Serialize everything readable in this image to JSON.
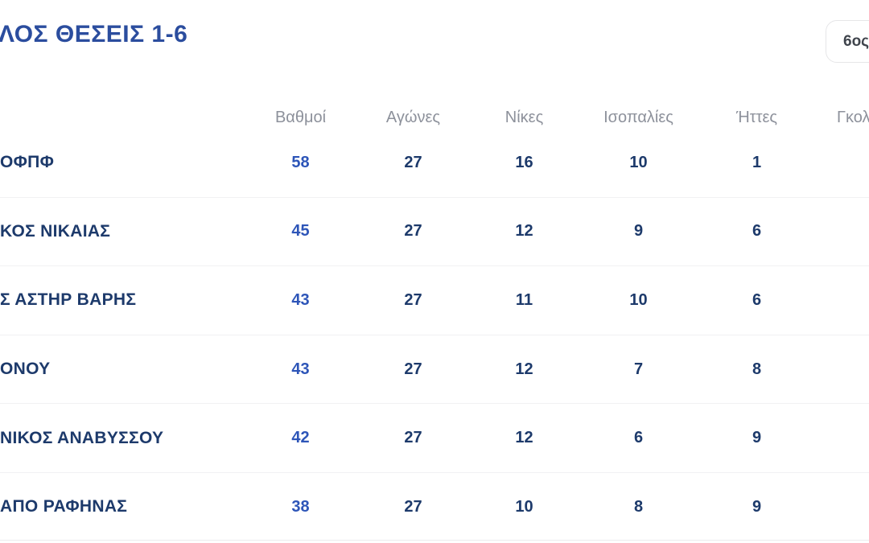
{
  "page": {
    "title": "ΛΟΣ ΘΕΣΕΙΣ 1-6",
    "group_selector_label": "6ος"
  },
  "colors": {
    "title_blue": "#2b4d9e",
    "team_navy": "#1d3a6b",
    "points_blue": "#2d55b8",
    "header_gray": "#8d919b",
    "divider": "#f1f1f3",
    "button_border": "#e6e6e8"
  },
  "table": {
    "columns": [
      "Βαθμοί",
      "Αγώνες",
      "Νίκες",
      "Ισοπαλίες",
      "Ήττες",
      "Γκολ"
    ],
    "rows": [
      {
        "team": "ΟΦΠΦ",
        "points": "58",
        "games": "27",
        "wins": "16",
        "draws": "10",
        "losses": "1"
      },
      {
        "team": "ΚΟΣ ΝΙΚΑΙΑΣ",
        "points": "45",
        "games": "27",
        "wins": "12",
        "draws": "9",
        "losses": "6"
      },
      {
        "team": "Σ ΑΣΤΗΡ ΒΑΡΗΣ",
        "points": "43",
        "games": "27",
        "wins": "11",
        "draws": "10",
        "losses": "6"
      },
      {
        "team": "ΟΝΟΥ",
        "points": "43",
        "games": "27",
        "wins": "12",
        "draws": "7",
        "losses": "8"
      },
      {
        "team": "ΝΙΚΟΣ ΑΝΑΒΥΣΣΟΥ",
        "points": "42",
        "games": "27",
        "wins": "12",
        "draws": "6",
        "losses": "9"
      },
      {
        "team": "ΑΠΟ ΡΑΦΗΝΑΣ",
        "points": "38",
        "games": "27",
        "wins": "10",
        "draws": "8",
        "losses": "9"
      }
    ]
  }
}
